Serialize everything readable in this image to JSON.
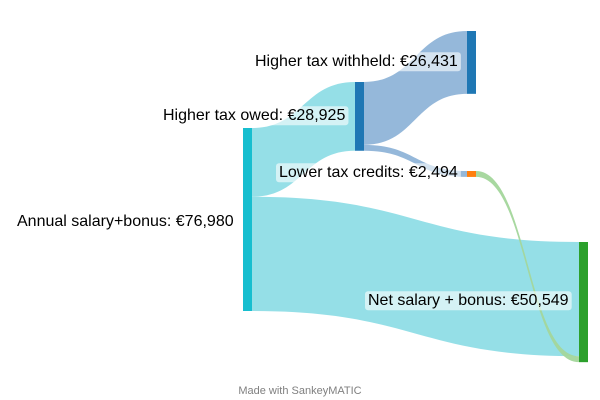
{
  "nodes": [
    {
      "id": "salary",
      "label": "Annual salary+bonus: €76,980",
      "value": 76980,
      "color": "#17becf"
    },
    {
      "id": "owed",
      "label": "Higher tax owed: €28,925",
      "value": 28925,
      "color": "#1f77b4"
    },
    {
      "id": "withheld",
      "label": "Higher tax withheld: €26,431",
      "value": 26431,
      "color": "#1f77b4"
    },
    {
      "id": "credits",
      "label": "Lower tax credits: €2,494",
      "value": 2494,
      "color": "#ff7f0e"
    },
    {
      "id": "net",
      "label": "Net salary + bonus: €50,549",
      "value": 50549,
      "color": "#2ca02c"
    }
  ],
  "flows": [
    {
      "from": "salary",
      "to": "owed",
      "value": 28925,
      "color": "#8fdde6"
    },
    {
      "from": "salary",
      "to": "net",
      "value": 48055,
      "color": "#8fdde6"
    },
    {
      "from": "owed",
      "to": "withheld",
      "value": 26431,
      "color": "#8fb4d8"
    },
    {
      "from": "owed",
      "to": "credits",
      "value": 2494,
      "color": "#8fb4d8"
    },
    {
      "from": "credits",
      "to": "net",
      "value": 2494,
      "color": "#a3d69b"
    }
  ],
  "footer": "Made with SankeyMATIC"
}
